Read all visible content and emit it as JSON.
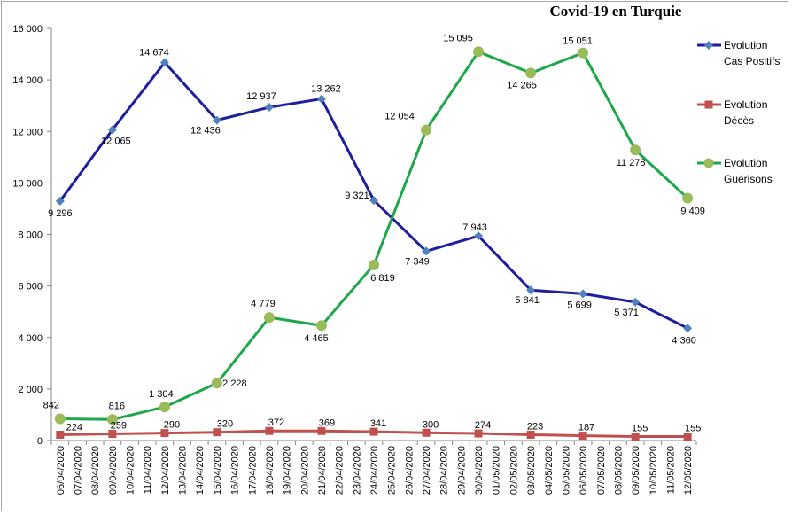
{
  "chart_data": {
    "type": "line",
    "title": "Covid-19 en Turquie",
    "xlabel": "",
    "ylabel": "",
    "ylim": [
      0,
      16000
    ],
    "yticks": [
      0,
      2000,
      4000,
      6000,
      8000,
      10000,
      12000,
      14000,
      16000
    ],
    "ytick_labels": [
      "0",
      "2 000",
      "4 000",
      "6 000",
      "8 000",
      "10 000",
      "12 000",
      "14 000",
      "16 000"
    ],
    "grid": false,
    "legend_position": "right",
    "categories": [
      "06/04/2020",
      "07/04/2020",
      "08/04/2020",
      "09/04/2020",
      "10/04/2020",
      "11/04/2020",
      "12/04/2020",
      "13/04/2020",
      "14/04/2020",
      "15/04/2020",
      "16/04/2020",
      "17/04/2020",
      "18/04/2020",
      "19/04/2020",
      "20/04/2020",
      "21/04/2020",
      "22/04/2020",
      "23/04/2020",
      "24/04/2020",
      "25/04/2020",
      "26/04/2020",
      "27/04/2020",
      "28/04/2020",
      "29/04/2020",
      "30/04/2020",
      "01/05/2020",
      "02/05/2020",
      "03/05/2020",
      "04/05/2020",
      "05/05/2020",
      "06/05/2020",
      "07/05/2020",
      "08/05/2020",
      "09/05/2020",
      "10/05/2020",
      "11/05/2020",
      "12/05/2020"
    ],
    "series": [
      {
        "name": "Evolution Cas Positifs",
        "legend_lines": [
          "Evolution",
          "Cas Positifs"
        ],
        "color": "#1f1f9e",
        "marker_color": "#4f81bd",
        "marker": "diamond",
        "points": [
          {
            "x": "06/04/2020",
            "y": 9296,
            "label": "9 296"
          },
          {
            "x": "09/04/2020",
            "y": 12065,
            "label": "12 065"
          },
          {
            "x": "12/04/2020",
            "y": 14674,
            "label": "14 674"
          },
          {
            "x": "15/04/2020",
            "y": 12436,
            "label": "12 436"
          },
          {
            "x": "18/04/2020",
            "y": 12937,
            "label": "12 937"
          },
          {
            "x": "21/04/2020",
            "y": 13262,
            "label": "13 262"
          },
          {
            "x": "24/04/2020",
            "y": 9321,
            "label": "9 321"
          },
          {
            "x": "27/04/2020",
            "y": 7349,
            "label": "7 349"
          },
          {
            "x": "30/04/2020",
            "y": 7943,
            "label": "7 943"
          },
          {
            "x": "03/05/2020",
            "y": 5841,
            "label": "5 841"
          },
          {
            "x": "06/05/2020",
            "y": 5699,
            "label": "5 699"
          },
          {
            "x": "09/05/2020",
            "y": 5371,
            "label": "5 371"
          },
          {
            "x": "12/05/2020",
            "y": 4360,
            "label": "4 360"
          }
        ]
      },
      {
        "name": "Evolution Décès",
        "legend_lines": [
          "Evolution",
          "Décès"
        ],
        "color": "#c0504d",
        "marker_color": "#c0504d",
        "marker": "square",
        "points": [
          {
            "x": "06/04/2020",
            "y": 224,
            "label": "224"
          },
          {
            "x": "09/04/2020",
            "y": 259,
            "label": "259"
          },
          {
            "x": "12/04/2020",
            "y": 290,
            "label": "290"
          },
          {
            "x": "15/04/2020",
            "y": 320,
            "label": "320"
          },
          {
            "x": "18/04/2020",
            "y": 372,
            "label": "372"
          },
          {
            "x": "21/04/2020",
            "y": 369,
            "label": "369"
          },
          {
            "x": "24/04/2020",
            "y": 341,
            "label": "341"
          },
          {
            "x": "27/04/2020",
            "y": 300,
            "label": "300"
          },
          {
            "x": "30/04/2020",
            "y": 274,
            "label": "274"
          },
          {
            "x": "03/05/2020",
            "y": 223,
            "label": "223"
          },
          {
            "x": "06/05/2020",
            "y": 187,
            "label": "187"
          },
          {
            "x": "09/05/2020",
            "y": 155,
            "label": "155"
          },
          {
            "x": "12/05/2020",
            "y": 155,
            "label": "155"
          }
        ]
      },
      {
        "name": "Evolution Guérisons",
        "legend_lines": [
          "Evolution",
          "Guérisons"
        ],
        "color": "#1ea84a",
        "marker_color": "#9bbb59",
        "marker": "circle",
        "points": [
          {
            "x": "06/04/2020",
            "y": 842,
            "label": "842"
          },
          {
            "x": "09/04/2020",
            "y": 816,
            "label": "816"
          },
          {
            "x": "12/04/2020",
            "y": 1304,
            "label": "1 304"
          },
          {
            "x": "15/04/2020",
            "y": 2228,
            "label": "2 228"
          },
          {
            "x": "18/04/2020",
            "y": 4779,
            "label": "4 779"
          },
          {
            "x": "21/04/2020",
            "y": 4465,
            "label": "4 465"
          },
          {
            "x": "24/04/2020",
            "y": 6819,
            "label": "6 819"
          },
          {
            "x": "27/04/2020",
            "y": 12054,
            "label": "12 054"
          },
          {
            "x": "30/04/2020",
            "y": 15095,
            "label": "15 095"
          },
          {
            "x": "03/05/2020",
            "y": 14265,
            "label": "14 265"
          },
          {
            "x": "06/05/2020",
            "y": 15051,
            "label": "15 051"
          },
          {
            "x": "09/05/2020",
            "y": 11278,
            "label": "11 278"
          },
          {
            "x": "12/05/2020",
            "y": 9409,
            "label": "9 409"
          }
        ]
      }
    ]
  }
}
